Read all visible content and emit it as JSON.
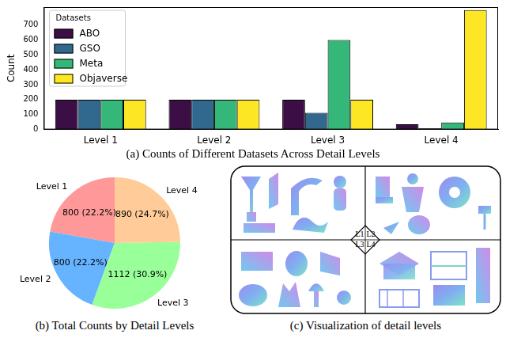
{
  "chart_data": [
    {
      "type": "bar",
      "title": "(a) Counts of Different Datasets Across Detail Levels",
      "ylabel": "Count",
      "legend_title": "Datasets",
      "legend": "upper left",
      "grid": false,
      "categories": [
        "Level 1",
        "Level 2",
        "Level 3",
        "Level 4"
      ],
      "series": [
        {
          "name": "ABO",
          "color": "#3b0f45",
          "values": [
            200,
            200,
            200,
            35
          ]
        },
        {
          "name": "GSO",
          "color": "#31688e",
          "values": [
            200,
            200,
            112,
            8
          ]
        },
        {
          "name": "Meta",
          "color": "#35b779",
          "values": [
            200,
            200,
            600,
            47
          ]
        },
        {
          "name": "Objaverse",
          "color": "#fde725",
          "values": [
            200,
            200,
            200,
            800
          ]
        }
      ],
      "ylim": [
        0,
        820
      ],
      "yticks": [
        0,
        100,
        200,
        300,
        400,
        500,
        600,
        700
      ]
    },
    {
      "type": "pie",
      "title": "(b) Total Counts by Detail Levels",
      "categories": [
        "Level 1",
        "Level 2",
        "Level 3",
        "Level 4"
      ],
      "values": [
        800,
        800,
        1112,
        890
      ],
      "value_labels": [
        "800 (22.2%)",
        "800 (22.2%)",
        "1112 (30.9%)",
        "890 (24.7%)"
      ],
      "colors": [
        "#ff9999",
        "#66b3ff",
        "#99ff99",
        "#ffcc99"
      ],
      "data_labels": true
    }
  ],
  "panel_c": {
    "caption": "(c) Visualization of detail levels",
    "quadrant_labels": [
      "L1",
      "L2",
      "L3",
      "L4"
    ]
  }
}
